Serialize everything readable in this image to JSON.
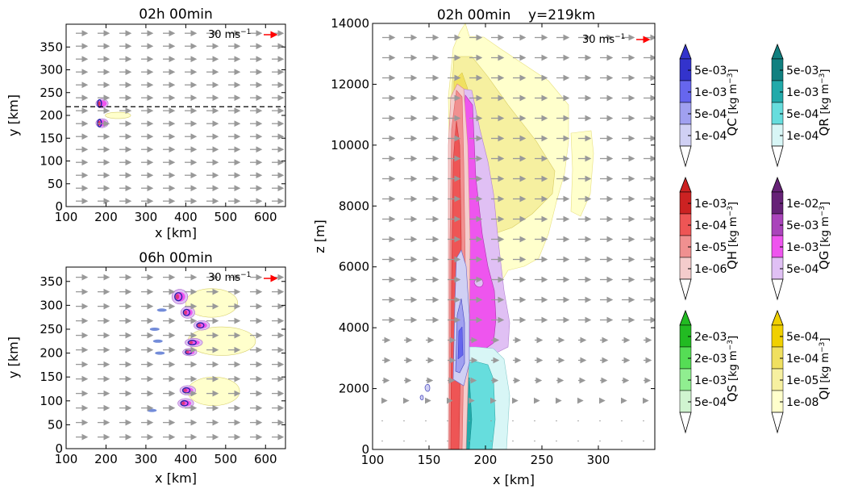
{
  "colors": {
    "arrow": "#999999",
    "ref_arrow": "#ff0000",
    "qc": [
      "#d0d0f4",
      "#a0a0f0",
      "#6666ee",
      "#3333cc"
    ],
    "qr": [
      "#d8f6f6",
      "#66dddd",
      "#22aaaa",
      "#118080"
    ],
    "qh": [
      "#f4cccc",
      "#f09090",
      "#ee5555",
      "#cc2222"
    ],
    "qg": [
      "#e0c0f4",
      "#ee55ee",
      "#aa44bb",
      "#662277"
    ],
    "qs": [
      "#d0f4d0",
      "#90ee90",
      "#55dd55",
      "#22bb22"
    ],
    "qi": [
      "#ffffcc",
      "#f6f0a0",
      "#f0e060",
      "#f0d000"
    ]
  },
  "chart_data": [
    {
      "type": "contour",
      "id": "top_left",
      "title": "02h 00min",
      "xlabel": "x [km]",
      "ylabel": "y [km]",
      "xlim": [
        100,
        650
      ],
      "ylim": [
        0,
        400
      ],
      "xticks": [
        "100",
        "200",
        "300",
        "400",
        "500",
        "600"
      ],
      "yticks": [
        "0",
        "50",
        "100",
        "150",
        "200",
        "250",
        "300",
        "350"
      ],
      "ref_label": "30 ms",
      "ref_exp": "−1",
      "dashed_line_y": 219,
      "cells": [
        {
          "x": 190,
          "y": 226,
          "rx": 14,
          "ry": 9
        },
        {
          "x": 190,
          "y": 183,
          "rx": 14,
          "ry": 9
        }
      ],
      "anvils": [
        {
          "x": 230,
          "y": 200,
          "rx": 32,
          "ry": 7
        }
      ]
    },
    {
      "type": "contour",
      "id": "bottom_left",
      "title": "06h 00min",
      "xlabel": "x [km]",
      "ylabel": "y [km]",
      "xlim": [
        100,
        650
      ],
      "ylim": [
        0,
        380
      ],
      "xticks": [
        "100",
        "200",
        "300",
        "400",
        "500",
        "600"
      ],
      "yticks": [
        "0",
        "50",
        "100",
        "150",
        "200",
        "250",
        "300",
        "350"
      ],
      "ref_label": "30 ms",
      "ref_exp": "−1",
      "cells": [
        {
          "x": 385,
          "y": 318,
          "rx": 18,
          "ry": 14
        },
        {
          "x": 405,
          "y": 285,
          "rx": 16,
          "ry": 11
        },
        {
          "x": 440,
          "y": 258,
          "rx": 18,
          "ry": 9
        },
        {
          "x": 420,
          "y": 222,
          "rx": 20,
          "ry": 8
        },
        {
          "x": 410,
          "y": 202,
          "rx": 16,
          "ry": 7
        },
        {
          "x": 405,
          "y": 122,
          "rx": 18,
          "ry": 9
        },
        {
          "x": 400,
          "y": 95,
          "rx": 18,
          "ry": 9
        }
      ],
      "anvils": [
        {
          "x": 465,
          "y": 305,
          "rx": 65,
          "ry": 30
        },
        {
          "x": 490,
          "y": 225,
          "rx": 85,
          "ry": 30
        },
        {
          "x": 470,
          "y": 120,
          "rx": 65,
          "ry": 30
        }
      ]
    },
    {
      "type": "contour",
      "id": "cross_section",
      "title": "02h 00min    y=219km",
      "xlabel": "x [km]",
      "ylabel": "z [m]",
      "xlim": [
        100,
        350
      ],
      "ylim": [
        0,
        14000
      ],
      "xticks": [
        "100",
        "150",
        "200",
        "250",
        "300"
      ],
      "yticks": [
        "0",
        "2000",
        "4000",
        "6000",
        "8000",
        "10000",
        "12000",
        "14000"
      ],
      "ref_label": "30 ms",
      "ref_exp": "−1"
    }
  ],
  "colorbars": [
    {
      "name": "QC",
      "unit": "[kg m",
      "unit_exp": "−3",
      "close": "]",
      "key": "qc",
      "labels": [
        "5e-03",
        "1e-03",
        "5e-04",
        "1e-04"
      ]
    },
    {
      "name": "QR",
      "unit": "[kg m",
      "unit_exp": "−3",
      "close": "]",
      "key": "qr",
      "labels": [
        "5e-03",
        "1e-03",
        "5e-04",
        "1e-04"
      ]
    },
    {
      "name": "QH",
      "unit": "[kg m",
      "unit_exp": "−3",
      "close": "]",
      "key": "qh",
      "labels": [
        "1e-03",
        "1e-04",
        "1e-05",
        "1e-06"
      ]
    },
    {
      "name": "QG",
      "unit": "[kg m",
      "unit_exp": "−3",
      "close": "]",
      "key": "qg",
      "labels": [
        "1e-02",
        "5e-03",
        "1e-03",
        "5e-04"
      ]
    },
    {
      "name": "QS",
      "unit": "[kg m",
      "unit_exp": "−3",
      "close": "]",
      "key": "qs",
      "labels": [
        "2e-03",
        "2e-03",
        "1e-03",
        "5e-04"
      ]
    },
    {
      "name": "QI",
      "unit": "[kg m",
      "unit_exp": "−3",
      "close": "]",
      "key": "qi",
      "labels": [
        "5e-04",
        "1e-04",
        "1e-05",
        "1e-08"
      ]
    }
  ]
}
